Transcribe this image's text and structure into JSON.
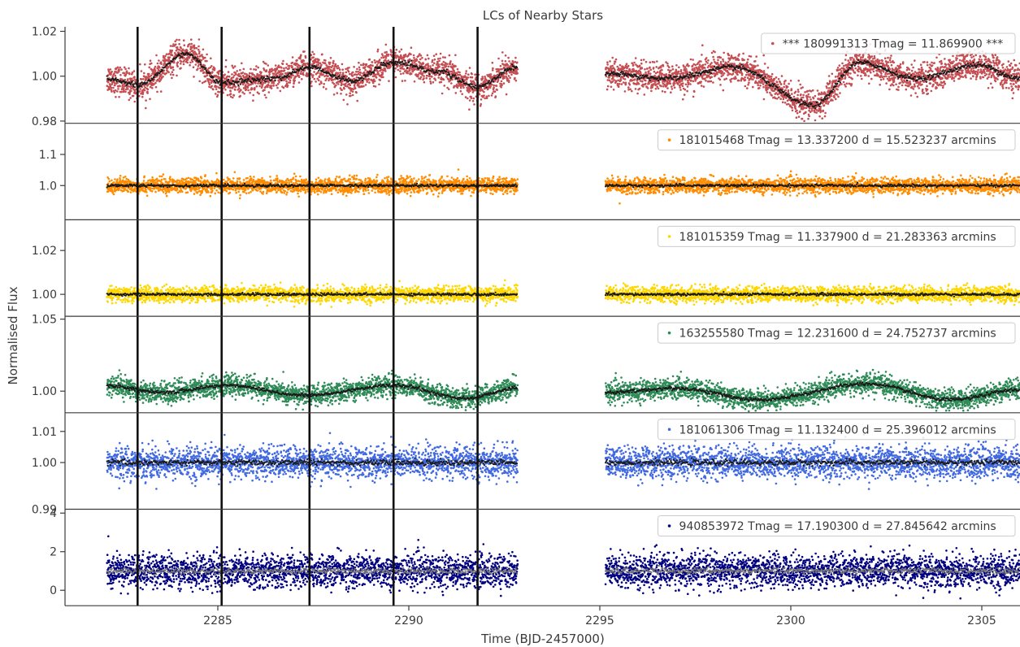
{
  "chart_data": {
    "type": "scatter",
    "title": "LCs of Nearby Stars",
    "xlabel": "Time (BJD-2457000)",
    "ylabel": "Normalised Flux",
    "xlim": [
      2281.0,
      2306.0
    ],
    "x_ticks": [
      2285,
      2290,
      2295,
      2300,
      2305
    ],
    "data_segments": [
      [
        2282.1,
        2292.85
      ],
      [
        2295.15,
        2306.0
      ]
    ],
    "transit_markers": [
      2282.9,
      2285.1,
      2287.4,
      2289.6,
      2291.8
    ],
    "legend_position": "top-right",
    "grid": false,
    "panels": [
      {
        "name": "*** 180991313  Tmag = 11.869900 ***",
        "color": "#c44e52",
        "ylim": [
          0.979,
          1.022
        ],
        "y_ticks": [
          0.98,
          1.0,
          1.02
        ],
        "y_tick_labels": [
          "0.98",
          "1.00",
          "1.02"
        ],
        "baseline": 1.0,
        "noise": 0.0032,
        "variability": "large-amplitude modulation with periodic dips near 1.003 peaks",
        "trend_points": [
          [
            2282.1,
            0.999
          ],
          [
            2282.9,
            0.996
          ],
          [
            2284.2,
            1.01
          ],
          [
            2285.1,
            0.997
          ],
          [
            2286.5,
            0.999
          ],
          [
            2287.4,
            1.004
          ],
          [
            2288.5,
            0.998
          ],
          [
            2289.6,
            1.006
          ],
          [
            2290.8,
            1.002
          ],
          [
            2291.8,
            0.995
          ],
          [
            2292.8,
            1.004
          ],
          [
            2295.2,
            1.001
          ],
          [
            2296.8,
            0.999
          ],
          [
            2298.5,
            1.004
          ],
          [
            2300.6,
            0.987
          ],
          [
            2301.8,
            1.006
          ],
          [
            2303.3,
            0.999
          ],
          [
            2304.9,
            1.005
          ],
          [
            2306.0,
            0.999
          ]
        ]
      },
      {
        "name": "181015468  Tmag = 13.337200   d = 15.523237 arcmins",
        "color": "#ff8c00",
        "ylim": [
          0.89,
          1.2
        ],
        "y_ticks": [
          1.0,
          1.1
        ],
        "y_tick_labels": [
          "1.0",
          "1.1"
        ],
        "baseline": 1.0,
        "noise": 0.012,
        "variability": "flat",
        "trend_points": [
          [
            2282.1,
            1.0
          ],
          [
            2306.0,
            1.0
          ]
        ]
      },
      {
        "name": "181015359  Tmag = 11.337900   d = 21.283363 arcmins",
        "color": "#ffd700",
        "ylim": [
          0.99,
          1.034
        ],
        "y_ticks": [
          1.0,
          1.02
        ],
        "y_tick_labels": [
          "1.00",
          "1.02"
        ],
        "baseline": 1.0,
        "noise": 0.0017,
        "variability": "flat",
        "trend_points": [
          [
            2282.1,
            1.0
          ],
          [
            2306.0,
            1.0
          ]
        ]
      },
      {
        "name": "163255580  Tmag = 12.231600   d = 24.752737 arcmins",
        "color": "#2e8b57",
        "ylim": [
          0.985,
          1.052
        ],
        "y_ticks": [
          1.0,
          1.05
        ],
        "y_tick_labels": [
          "1.00",
          "1.05"
        ],
        "baseline": 1.0,
        "noise": 0.0035,
        "variability": "slow low-amplitude waves",
        "trend_points": [
          [
            2282.1,
            1.004
          ],
          [
            2283.5,
            0.999
          ],
          [
            2285.3,
            1.004
          ],
          [
            2287.3,
            0.997
          ],
          [
            2289.6,
            1.004
          ],
          [
            2291.5,
            0.995
          ],
          [
            2292.8,
            1.002
          ],
          [
            2295.2,
            0.999
          ],
          [
            2297.0,
            1.002
          ],
          [
            2299.2,
            0.994
          ],
          [
            2302.0,
            1.005
          ],
          [
            2304.2,
            0.994
          ],
          [
            2306.0,
            1.001
          ]
        ]
      },
      {
        "name": "181061306  Tmag = 11.132400   d = 25.396012 arcmins",
        "color": "#4169e1",
        "ylim": [
          0.985,
          1.016
        ],
        "y_ticks": [
          1.0,
          1.01
        ],
        "y_tick_labels": [
          "1.00",
          "1.01"
        ],
        "baseline": 1.0,
        "noise": 0.0025,
        "variability": "flat",
        "trend_points": [
          [
            2282.1,
            1.0
          ],
          [
            2306.0,
            1.0
          ]
        ]
      },
      {
        "name": "940853972  Tmag = 17.190300   d = 27.845642 arcmins",
        "color": "#000080",
        "ylim": [
          -0.8,
          4.2
        ],
        "y_ticks": [
          0,
          2,
          4
        ],
        "y_tick_labels": [
          "0",
          "2",
          "4"
        ],
        "baseline": 1.0,
        "noise": 0.42,
        "variability": "flat",
        "trend_points": [
          [
            2282.1,
            1.0
          ],
          [
            2306.0,
            1.0
          ]
        ]
      }
    ],
    "overlap_label": "0.99"
  }
}
